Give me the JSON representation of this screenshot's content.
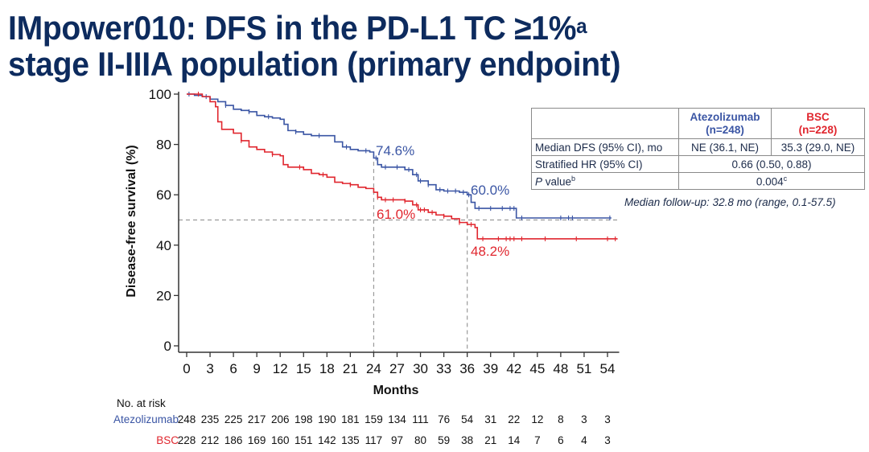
{
  "title": {
    "line1": "IMpower010: DFS in the PD-L1 TC ≥1%",
    "line1_sup": "a",
    "line2": "stage II-IIIA population (primary endpoint)"
  },
  "colors": {
    "title": "#0d2b5e",
    "atezolizumab": "#3a55a4",
    "bsc": "#e0262e",
    "reference_line": "#9a9a9a"
  },
  "stats_table": {
    "header": {
      "col1": "",
      "col2_name": "Atezolizumab",
      "col2_n": "(n=248)",
      "col3_name": "BSC",
      "col3_n": "(n=228)"
    },
    "rows": [
      {
        "label": "Median DFS (95% CI), mo",
        "atezolizumab": "NE (36.1, NE)",
        "bsc": "35.3 (29.0, NE)"
      },
      {
        "label": "Stratified HR (95% CI)",
        "combined": "0.66 (0.50, 0.88)"
      },
      {
        "label_italic": "P",
        "label_rest": " value",
        "label_sup": "b",
        "combined": "0.004",
        "combined_sup": "c"
      }
    ]
  },
  "follow_up": "Median follow-up: 32.8 mo (range, 0.1-57.5)",
  "risk_table": {
    "heading": "No. at risk",
    "rows": [
      {
        "label": "Atezolizumab",
        "values": [
          248,
          235,
          225,
          217,
          206,
          198,
          190,
          181,
          159,
          134,
          111,
          76,
          54,
          31,
          22,
          12,
          8,
          3,
          3
        ]
      },
      {
        "label": "BSC",
        "values": [
          228,
          212,
          186,
          169,
          160,
          151,
          142,
          135,
          117,
          97,
          80,
          59,
          38,
          21,
          14,
          7,
          6,
          4,
          3
        ]
      }
    ]
  },
  "chart_data": {
    "type": "line",
    "subtype": "kaplan-meier",
    "title": "IMpower010: DFS in the PD-L1 TC ≥1% stage II-IIIA population (primary endpoint)",
    "xlabel": "Months",
    "ylabel": "Disease-free survival (%)",
    "xlim": [
      0,
      55.5
    ],
    "ylim": [
      0,
      100
    ],
    "xticks": [
      0,
      3,
      6,
      9,
      12,
      15,
      18,
      21,
      24,
      27,
      30,
      33,
      36,
      39,
      42,
      45,
      48,
      51,
      54
    ],
    "yticks": [
      0,
      20,
      40,
      60,
      80,
      100
    ],
    "grid": false,
    "reference_lines": [
      {
        "orientation": "horizontal",
        "y": 50,
        "style": "dashed"
      },
      {
        "orientation": "vertical",
        "x": 24,
        "style": "dashed"
      },
      {
        "orientation": "vertical",
        "x": 36,
        "style": "dashed"
      }
    ],
    "annotations": [
      {
        "text": "74.6%",
        "x": 24,
        "y": 74.6,
        "series": "Atezolizumab"
      },
      {
        "text": "61.0%",
        "x": 24,
        "y": 61.0,
        "series": "BSC"
      },
      {
        "text": "60.0%",
        "x": 36,
        "y": 60.0,
        "series": "Atezolizumab"
      },
      {
        "text": "48.2%",
        "x": 36,
        "y": 48.2,
        "series": "BSC"
      }
    ],
    "series": [
      {
        "name": "Atezolizumab",
        "points": [
          [
            0,
            100
          ],
          [
            1,
            99.5
          ],
          [
            2,
            99
          ],
          [
            3,
            98
          ],
          [
            4,
            97
          ],
          [
            5,
            95.5
          ],
          [
            6,
            94
          ],
          [
            7,
            93.5
          ],
          [
            8,
            93
          ],
          [
            9,
            91.5
          ],
          [
            10,
            91
          ],
          [
            11,
            90.5
          ],
          [
            12,
            90
          ],
          [
            12.5,
            88
          ],
          [
            13,
            85.5
          ],
          [
            14,
            85
          ],
          [
            15,
            84
          ],
          [
            16,
            83.5
          ],
          [
            18,
            83.5
          ],
          [
            19,
            81
          ],
          [
            20,
            79
          ],
          [
            21,
            78
          ],
          [
            22,
            77.5
          ],
          [
            23.5,
            77
          ],
          [
            24,
            74.6
          ],
          [
            24.5,
            72
          ],
          [
            25,
            71
          ],
          [
            27,
            71
          ],
          [
            28,
            70
          ],
          [
            29,
            68
          ],
          [
            29.7,
            65.5
          ],
          [
            31,
            64
          ],
          [
            32,
            62
          ],
          [
            33,
            61.5
          ],
          [
            35,
            61
          ],
          [
            36,
            60
          ],
          [
            36.5,
            57
          ],
          [
            37,
            54.6
          ],
          [
            42.3,
            54.6
          ],
          [
            42.3,
            50.8
          ],
          [
            54.5,
            50.8
          ]
        ],
        "censor_x": [
          0.3,
          2.5,
          5,
          8,
          10.5,
          14,
          17,
          20.5,
          23,
          24.3,
          25.5,
          27,
          28.5,
          29.5,
          30,
          31,
          32.5,
          33.5,
          34.5,
          35.5,
          36.2,
          37.5,
          39,
          40.5,
          41.5,
          42,
          43,
          48,
          49,
          49.5,
          54.3
        ]
      },
      {
        "name": "BSC",
        "points": [
          [
            0,
            100
          ],
          [
            1,
            100
          ],
          [
            2,
            99
          ],
          [
            3,
            97
          ],
          [
            3.7,
            95
          ],
          [
            4,
            89
          ],
          [
            4.5,
            86
          ],
          [
            6,
            84.5
          ],
          [
            7,
            81.5
          ],
          [
            8,
            79
          ],
          [
            9,
            78
          ],
          [
            10,
            77
          ],
          [
            11,
            76
          ],
          [
            12,
            75.5
          ],
          [
            12.4,
            72
          ],
          [
            13,
            71
          ],
          [
            15,
            70
          ],
          [
            16,
            68.5
          ],
          [
            17,
            68
          ],
          [
            18,
            67
          ],
          [
            19,
            65
          ],
          [
            20,
            64.5
          ],
          [
            21,
            64
          ],
          [
            22,
            63
          ],
          [
            23,
            62.5
          ],
          [
            24,
            61.0
          ],
          [
            24.5,
            59
          ],
          [
            25,
            58
          ],
          [
            27,
            58
          ],
          [
            28,
            57.5
          ],
          [
            29,
            56
          ],
          [
            29.7,
            54
          ],
          [
            31,
            53
          ],
          [
            32,
            52
          ],
          [
            33,
            51.5
          ],
          [
            34,
            50.5
          ],
          [
            35,
            49
          ],
          [
            36,
            48.2
          ],
          [
            37,
            47
          ],
          [
            37.3,
            42.5
          ],
          [
            55.3,
            42.5
          ]
        ],
        "censor_x": [
          1.5,
          7,
          11,
          14.5,
          17.5,
          21,
          24.5,
          25.5,
          26.5,
          28,
          29.5,
          30,
          30.5,
          31.5,
          33,
          35,
          36.5,
          38,
          40,
          41,
          41.5,
          42,
          43,
          46,
          50,
          54,
          55
        ]
      }
    ],
    "risk_table": {
      "x": [
        0,
        3,
        6,
        9,
        12,
        15,
        18,
        21,
        24,
        27,
        30,
        33,
        36,
        39,
        42,
        45,
        48,
        51,
        54
      ],
      "Atezolizumab": [
        248,
        235,
        225,
        217,
        206,
        198,
        190,
        181,
        159,
        134,
        111,
        76,
        54,
        31,
        22,
        12,
        8,
        3,
        3
      ],
      "BSC": [
        228,
        212,
        186,
        169,
        160,
        151,
        142,
        135,
        117,
        97,
        80,
        59,
        38,
        21,
        14,
        7,
        6,
        4,
        3
      ]
    }
  }
}
